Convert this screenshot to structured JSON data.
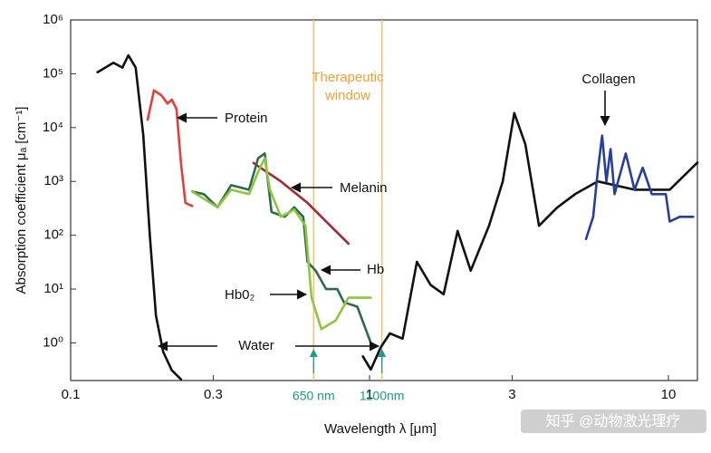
{
  "chart_data": {
    "type": "line",
    "x_label": "Wavelength λ [μm]",
    "y_label": "Absorption coefficient μₐ [cm⁻¹]",
    "log_x": true,
    "log_y": true,
    "xlim": [
      0.1,
      12.5
    ],
    "ylim": [
      0.2,
      1000000
    ],
    "xticks": [
      0.1,
      0.3,
      1,
      3,
      10
    ],
    "yticks": [
      {
        "value": 1,
        "label": "10⁰"
      },
      {
        "value": 10,
        "label": "10¹"
      },
      {
        "value": 100,
        "label": "10²"
      },
      {
        "value": 1000,
        "label": "10³"
      },
      {
        "value": 10000,
        "label": "10⁴"
      },
      {
        "value": 100000,
        "label": "10⁵"
      },
      {
        "value": 1000000,
        "label": "10⁶"
      }
    ],
    "window_label": [
      "Therapeutic",
      "window"
    ],
    "window_color": "#f5c26b",
    "markers": [
      {
        "value": 0.65,
        "label": "650 nm"
      },
      {
        "value": 1.1,
        "label": "1100nm"
      }
    ],
    "watermark": "知乎 @动物激光理疗",
    "series": [
      {
        "name": "Water",
        "color": "#111111",
        "x": [
          0.123,
          0.139,
          0.149,
          0.156,
          0.165,
          0.175,
          0.184,
          0.193,
          0.204,
          0.218,
          0.234,
          null,
          0.95,
          1.01,
          1.09,
          1.17,
          1.29,
          1.44,
          1.6,
          1.77,
          1.97,
          2.18,
          2.51,
          2.79,
          3.05,
          3.32,
          3.69,
          4.24,
          4.87,
          5.8,
          7.7,
          10.1,
          12.5
        ],
        "values": [
          107000,
          160000,
          130000,
          220000,
          130000,
          7200,
          100,
          3.2,
          0.68,
          0.31,
          0.21,
          null,
          0.56,
          0.32,
          0.83,
          1.5,
          1.2,
          32,
          12,
          8,
          120,
          22,
          150,
          1000,
          18600,
          4900,
          150,
          325,
          580,
          1000,
          700,
          700,
          2240
        ]
      },
      {
        "name": "Protein",
        "color": "#e0403a",
        "x": [
          0.181,
          0.19,
          0.201,
          0.211,
          0.218,
          0.226,
          0.234,
          0.242,
          0.255
        ],
        "values": [
          14000,
          49000,
          40000,
          28000,
          33000,
          22000,
          2200,
          400,
          350
        ]
      },
      {
        "name": "Melanin",
        "color": "#a8262e",
        "x": [
          0.409,
          0.505,
          0.62,
          0.716,
          0.85
        ],
        "values": [
          2200,
          1000,
          400,
          180,
          70
        ]
      },
      {
        "name": "Hb",
        "color": "#2e6b4e",
        "x": [
          0.255,
          0.279,
          0.31,
          0.344,
          0.395,
          0.424,
          0.446,
          0.47,
          0.52,
          0.56,
          0.6,
          0.62,
          0.66,
          0.716,
          0.78,
          0.82,
          0.91,
          1.01
        ],
        "values": [
          650,
          580,
          330,
          850,
          700,
          2700,
          3300,
          270,
          220,
          330,
          220,
          32,
          22,
          10,
          10,
          5.7,
          4.7,
          1
        ]
      },
      {
        "name": "Hb0₂",
        "color": "#8cc63f",
        "x": [
          0.255,
          0.31,
          0.344,
          0.395,
          0.424,
          0.446,
          0.464,
          0.505,
          0.56,
          0.61,
          0.64,
          0.69,
          0.77,
          0.85,
          1.01
        ],
        "values": [
          650,
          330,
          700,
          580,
          1500,
          2700,
          700,
          220,
          300,
          150,
          6.9,
          1.8,
          2.6,
          6.9,
          6.9
        ]
      },
      {
        "name": "Collagen",
        "color": "#25409a",
        "x": [
          5.3,
          5.6,
          5.8,
          6.0,
          6.2,
          6.4,
          6.6,
          7.2,
          7.7,
          8.2,
          8.8,
          9.8,
          10.1,
          10.9,
          12.1
        ],
        "values": [
          85,
          220,
          1500,
          7100,
          1000,
          4000,
          580,
          3300,
          700,
          1800,
          580,
          580,
          180,
          220,
          220
        ]
      }
    ]
  }
}
